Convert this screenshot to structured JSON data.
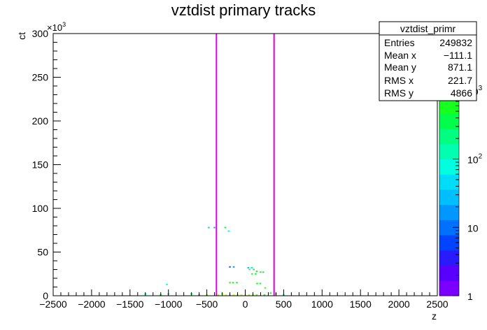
{
  "chart_data": {
    "type": "heatmap",
    "title": "vztdist primary tracks",
    "xlabel": "z",
    "ylabel": "ct",
    "y_multiplier": "×10",
    "y_multiplier_exp": "3",
    "xlim": [
      -2500,
      2500
    ],
    "ylim": [
      0,
      300
    ],
    "x_ticks": [
      -2500,
      -2000,
      -1500,
      -1000,
      -500,
      0,
      500,
      1000,
      1500,
      2000,
      2500
    ],
    "y_ticks": [
      0,
      50,
      100,
      150,
      200,
      250,
      300
    ],
    "grid": false,
    "colorbar": {
      "scale": "log",
      "range": [
        1,
        10000
      ],
      "tick_labels": [
        {
          "value": 1,
          "base": "1",
          "exp": ""
        },
        {
          "value": 10,
          "base": "10",
          "exp": ""
        },
        {
          "value": 100,
          "base": "10",
          "exp": "2"
        },
        {
          "value": 1000,
          "base": "10",
          "exp": "3"
        }
      ],
      "colors": [
        "#7a00ff",
        "#5a00ff",
        "#2a1aff",
        "#0044ff",
        "#0070ff",
        "#0098ff",
        "#00bfff",
        "#00ddf8",
        "#00ffe0",
        "#00ffb0",
        "#00ff80",
        "#00ff4a",
        "#16ff1e",
        "#48ff10",
        "#7aff0c",
        "#a8ff08",
        "#d4ff04",
        "#f4ff00"
      ]
    },
    "vertical_lines": [
      -375,
      375
    ],
    "vertical_line_color": "#e000e0",
    "cells": [
      {
        "x": -475,
        "y": 78,
        "v": 40
      },
      {
        "x": -400,
        "y": 78,
        "v": 30
      },
      {
        "x": -260,
        "y": 78,
        "v": 300
      },
      {
        "x": -215,
        "y": 74,
        "v": 80
      },
      {
        "x": -200,
        "y": 33,
        "v": 8
      },
      {
        "x": -150,
        "y": 33,
        "v": 20
      },
      {
        "x": 40,
        "y": 32,
        "v": 30
      },
      {
        "x": 85,
        "y": 32,
        "v": 200
      },
      {
        "x": 55,
        "y": 30,
        "v": 60
      },
      {
        "x": 110,
        "y": 30,
        "v": 400
      },
      {
        "x": 150,
        "y": 28,
        "v": 500
      },
      {
        "x": 200,
        "y": 27,
        "v": 600
      },
      {
        "x": 235,
        "y": 27,
        "v": 300
      },
      {
        "x": 90,
        "y": 25,
        "v": 700
      },
      {
        "x": 135,
        "y": 25,
        "v": 400
      },
      {
        "x": -200,
        "y": 15,
        "v": 900
      },
      {
        "x": -160,
        "y": 15,
        "v": 700
      },
      {
        "x": -110,
        "y": 15,
        "v": 500
      },
      {
        "x": 155,
        "y": 14,
        "v": 600
      },
      {
        "x": 195,
        "y": 14,
        "v": 400
      },
      {
        "x": -1020,
        "y": 13,
        "v": 60
      },
      {
        "x": 260,
        "y": 9,
        "v": 800
      },
      {
        "x": 330,
        "y": 3,
        "v": 300
      },
      {
        "x": -1300,
        "y": 2,
        "v": 200
      },
      {
        "x": -1100,
        "y": 1,
        "v": 500
      },
      {
        "x": -1000,
        "y": 2,
        "v": 300
      },
      {
        "x": -700,
        "y": 2,
        "v": 400
      },
      {
        "x": -600,
        "y": 1,
        "v": 900
      },
      {
        "x": -500,
        "y": 1,
        "v": 2000
      },
      {
        "x": -350,
        "y": 1,
        "v": 3000
      },
      {
        "x": -300,
        "y": 2,
        "v": 1500
      },
      {
        "x": -250,
        "y": 1,
        "v": 4000
      },
      {
        "x": -200,
        "y": 1,
        "v": 3000
      },
      {
        "x": -150,
        "y": 1,
        "v": 5000
      },
      {
        "x": -100,
        "y": 1,
        "v": 2500
      },
      {
        "x": -50,
        "y": 1,
        "v": 4500
      },
      {
        "x": 0,
        "y": 1,
        "v": 6000
      },
      {
        "x": 50,
        "y": 1,
        "v": 3500
      },
      {
        "x": 100,
        "y": 1,
        "v": 2500
      },
      {
        "x": 150,
        "y": 1,
        "v": 1500
      },
      {
        "x": 250,
        "y": 1,
        "v": 600
      },
      {
        "x": 400,
        "y": 2,
        "v": 300
      },
      {
        "x": 500,
        "y": 1,
        "v": 150
      }
    ]
  },
  "stats_box": {
    "title": "vztdist_primr",
    "rows": [
      {
        "label": "Entries",
        "value": "249832"
      },
      {
        "label": "Mean x",
        "value": "−111.1"
      },
      {
        "label": "Mean y",
        "value": "871.1"
      },
      {
        "label": "RMS x",
        "value": "221.7"
      },
      {
        "label": "RMS y",
        "value": "4866"
      }
    ]
  }
}
